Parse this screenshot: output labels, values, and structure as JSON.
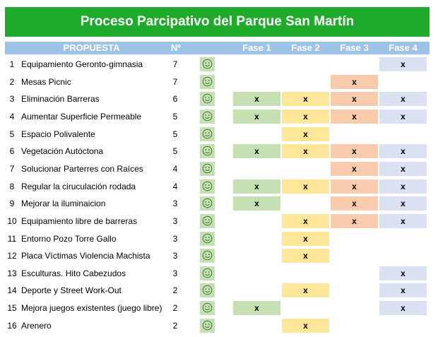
{
  "title": "Proceso Parcipativo del Parque San Martín",
  "headers": {
    "propuesta": "PROPUESTA",
    "numero": "Nº",
    "fase1": "Fase 1",
    "fase2": "Fase 2",
    "fase3": "Fase 3",
    "fase4": "Fase 4"
  },
  "colors": {
    "banner": "#1faa2b",
    "header": "#9dc3e6",
    "smile_bg": "#c5e0b3",
    "fase1": "#c5e0b3",
    "fase2": "#ffe699",
    "fase3": "#f8cbad",
    "fase4": "#d9e1f2"
  },
  "icon": "smiley-icon",
  "rows": [
    {
      "n": "1",
      "name": "Equipamiento Geronto-gimnasia",
      "votes": "7",
      "f1": "",
      "f2": "",
      "f3": "",
      "f4": "x"
    },
    {
      "n": "2",
      "name": "Mesas Picnic",
      "votes": "7",
      "f1": "",
      "f2": "",
      "f3": "x",
      "f4": ""
    },
    {
      "n": "3",
      "name": "Eliminación Barreras",
      "votes": "6",
      "f1": "x",
      "f2": "x",
      "f3": "x",
      "f4": "x"
    },
    {
      "n": "4",
      "name": "Aumentar Superficie Permeable",
      "votes": "5",
      "f1": "x",
      "f2": "x",
      "f3": "x",
      "f4": "x"
    },
    {
      "n": "5",
      "name": "Espacio Polivalente",
      "votes": "5",
      "f1": "",
      "f2": "x",
      "f3": "",
      "f4": ""
    },
    {
      "n": "6",
      "name": "Vegetación Autóctona",
      "votes": "5",
      "f1": "x",
      "f2": "x",
      "f3": "x",
      "f4": "x"
    },
    {
      "n": "7",
      "name": "Solucionar Parterres con Raíces",
      "votes": "4",
      "f1": "",
      "f2": "",
      "f3": "x",
      "f4": "x"
    },
    {
      "n": "8",
      "name": "Regular la ciruculación rodada",
      "votes": "4",
      "f1": "x",
      "f2": "x",
      "f3": "x",
      "f4": "x"
    },
    {
      "n": "9",
      "name": "Mejorar la iluminaicion",
      "votes": "3",
      "f1": "x",
      "f2": "",
      "f3": "x",
      "f4": "x"
    },
    {
      "n": "10",
      "name": "Equipamiento libre de barreras",
      "votes": "3",
      "f1": "",
      "f2": "x",
      "f3": "x",
      "f4": "x"
    },
    {
      "n": "11",
      "name": "Entorno Pozo Torre Gallo",
      "votes": "3",
      "f1": "",
      "f2": "x",
      "f3": "",
      "f4": ""
    },
    {
      "n": "12",
      "name": "Placa Víctimas Violencia Machista",
      "votes": "3",
      "f1": "",
      "f2": "x",
      "f3": "",
      "f4": ""
    },
    {
      "n": "13",
      "name": "Esculturas. Hito Cabezudos",
      "votes": "3",
      "f1": "",
      "f2": "",
      "f3": "",
      "f4": "x"
    },
    {
      "n": "14",
      "name": "Deporte y Street Work-Out",
      "votes": "2",
      "f1": "",
      "f2": "x",
      "f3": "",
      "f4": "x"
    },
    {
      "n": "15",
      "name": "Mejora juegos existentes (juego libre)",
      "votes": "2",
      "f1": "x",
      "f2": "",
      "f3": "",
      "f4": "x"
    },
    {
      "n": "16",
      "name": "Arenero",
      "votes": "2",
      "f1": "",
      "f2": "x",
      "f3": "",
      "f4": ""
    }
  ]
}
